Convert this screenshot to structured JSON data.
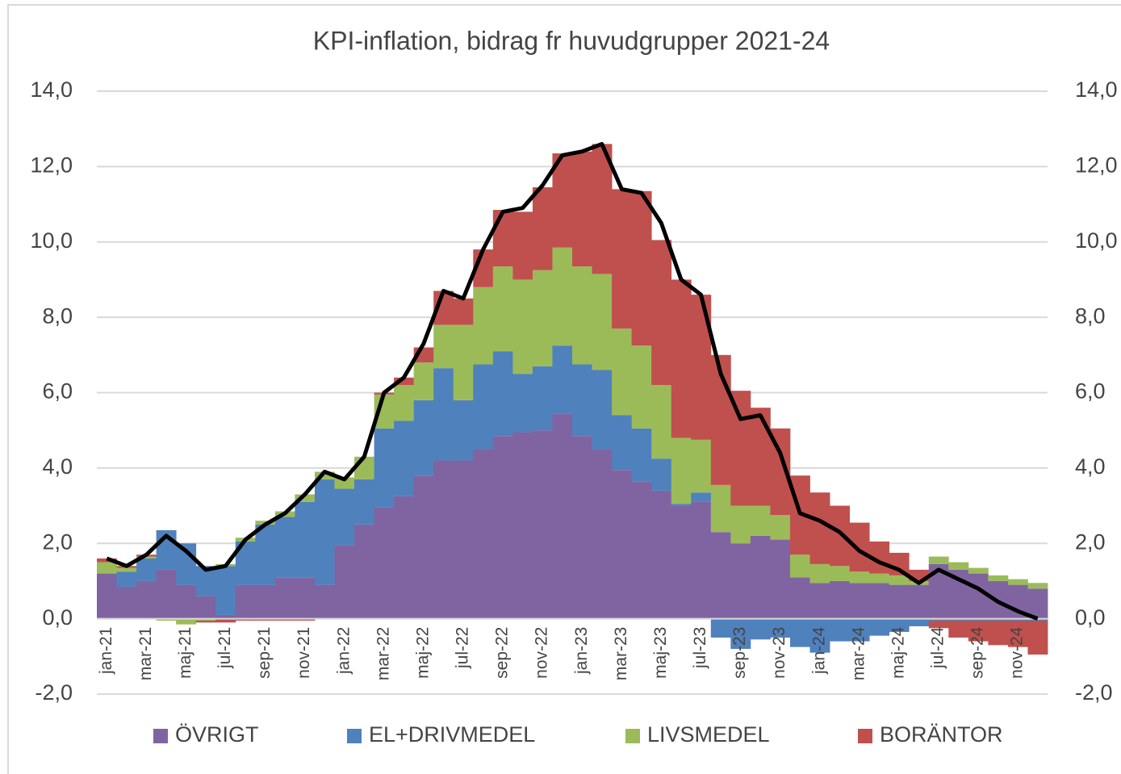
{
  "chart_data": {
    "type": "bar",
    "stacked": true,
    "title": "KPI-inflation,  bidrag fr huvudgrupper  2021-24",
    "categories": [
      "jan-21",
      null,
      "mar-21",
      null,
      "maj-21",
      null,
      "jul-21",
      null,
      "sep-21",
      null,
      "nov-21",
      null,
      "jan-22",
      null,
      "mar-22",
      null,
      "maj-22",
      null,
      "jul-22",
      null,
      "sep-22",
      null,
      "nov-22",
      null,
      "jan-23",
      null,
      "mar-23",
      null,
      "maj-23",
      null,
      "jul-23",
      null,
      "sep-23",
      null,
      "nov-23",
      null,
      "jan-24",
      null,
      "mar-24",
      null,
      "maj-24",
      null,
      "jul-24",
      null,
      "sep-24",
      null,
      "nov-24",
      null
    ],
    "series": [
      {
        "name": "ÖVRIGT",
        "color": "#8064a2",
        "values": [
          1.2,
          0.85,
          1.0,
          1.3,
          0.9,
          0.6,
          0.1,
          0.9,
          0.9,
          1.1,
          1.1,
          0.9,
          1.95,
          2.5,
          2.95,
          3.25,
          3.8,
          4.2,
          4.2,
          4.5,
          4.85,
          4.95,
          5.0,
          5.45,
          4.85,
          4.5,
          3.95,
          3.65,
          3.4,
          3.0,
          3.1,
          2.3,
          2.0,
          2.2,
          2.1,
          1.1,
          0.95,
          1.0,
          0.95,
          0.95,
          0.9,
          0.9,
          1.45,
          1.3,
          1.2,
          1.0,
          0.9,
          0.8
        ]
      },
      {
        "name": "EL+DRIVMEDEL",
        "color": "#4f81bd",
        "values": [
          0.0,
          0.4,
          0.6,
          1.05,
          1.1,
          0.8,
          1.3,
          1.15,
          1.6,
          1.6,
          2.0,
          2.8,
          1.5,
          1.2,
          2.1,
          2.0,
          2.0,
          2.45,
          1.6,
          2.25,
          2.25,
          1.55,
          1.7,
          1.8,
          1.9,
          2.1,
          1.45,
          1.4,
          0.85,
          0.05,
          0.25,
          -0.5,
          -0.8,
          -0.55,
          -0.5,
          -0.75,
          -0.9,
          -0.6,
          -0.6,
          -0.45,
          -0.35,
          -0.2,
          -0.05,
          -0.05,
          -0.05,
          -0.05,
          -0.05,
          -0.05
        ]
      },
      {
        "name": "LIVSMEDEL",
        "color": "#9bbb59",
        "values": [
          0.3,
          0.1,
          0.05,
          -0.05,
          -0.15,
          -0.05,
          0.05,
          0.1,
          0.1,
          0.15,
          0.2,
          0.2,
          0.3,
          0.6,
          0.9,
          0.95,
          1.0,
          1.15,
          2.0,
          2.05,
          2.25,
          2.5,
          2.55,
          2.6,
          2.6,
          2.55,
          2.3,
          2.2,
          1.95,
          1.75,
          1.4,
          1.25,
          1.0,
          0.8,
          0.65,
          0.6,
          0.5,
          0.4,
          0.3,
          0.25,
          0.25,
          0.1,
          0.2,
          0.2,
          0.15,
          0.15,
          0.15,
          0.15
        ]
      },
      {
        "name": "BORÄNTOR",
        "color": "#c0504d",
        "values": [
          0.1,
          0.05,
          0.05,
          0.0,
          0.0,
          -0.05,
          -0.1,
          -0.05,
          -0.05,
          -0.05,
          -0.05,
          0.0,
          0.0,
          0.0,
          0.05,
          0.2,
          0.4,
          0.9,
          0.7,
          1.0,
          1.5,
          1.8,
          2.2,
          2.5,
          3.05,
          3.45,
          3.7,
          4.1,
          3.85,
          4.2,
          3.85,
          3.45,
          3.05,
          2.6,
          2.3,
          2.1,
          1.9,
          1.6,
          1.3,
          0.85,
          0.6,
          0.3,
          -0.2,
          -0.45,
          -0.55,
          -0.65,
          -0.7,
          -0.9
        ]
      }
    ],
    "line": {
      "color": "#000000",
      "values": [
        1.6,
        1.4,
        1.7,
        2.2,
        1.8,
        1.3,
        1.4,
        2.1,
        2.5,
        2.8,
        3.3,
        3.9,
        3.7,
        4.3,
        6.0,
        6.4,
        7.3,
        8.7,
        8.5,
        9.8,
        10.8,
        10.9,
        11.5,
        12.3,
        12.4,
        12.6,
        11.4,
        11.3,
        10.5,
        9.0,
        8.6,
        6.5,
        5.3,
        5.4,
        4.4,
        2.8,
        2.6,
        2.3,
        1.8,
        1.5,
        1.3,
        0.95,
        1.3,
        1.05,
        0.8,
        0.45,
        0.2,
        0.0
      ]
    },
    "ylim": [
      -2,
      14
    ],
    "yticks": [
      {
        "value": -2,
        "label": "-2,0"
      },
      {
        "value": 0,
        "label": "0,0"
      },
      {
        "value": 2,
        "label": "2,0"
      },
      {
        "value": 4,
        "label": "4,0"
      },
      {
        "value": 6,
        "label": "6,0"
      },
      {
        "value": 8,
        "label": "8,0"
      },
      {
        "value": 10,
        "label": "10,0"
      },
      {
        "value": 12,
        "label": "12,0"
      },
      {
        "value": 14,
        "label": "14,0"
      }
    ],
    "y2lim": [
      -2,
      14
    ],
    "y2ticks": [
      {
        "value": -2,
        "label": "-2,0"
      },
      {
        "value": 0,
        "label": "0,0"
      },
      {
        "value": 2,
        "label": "2,0"
      },
      {
        "value": 4,
        "label": "4,0"
      },
      {
        "value": 6,
        "label": "6,0"
      },
      {
        "value": 8,
        "label": "8,0"
      },
      {
        "value": 10,
        "label": "10,0"
      },
      {
        "value": 12,
        "label": "12,0"
      },
      {
        "value": 14,
        "label": "14,0"
      }
    ],
    "grid": true,
    "legend": "bottom"
  }
}
